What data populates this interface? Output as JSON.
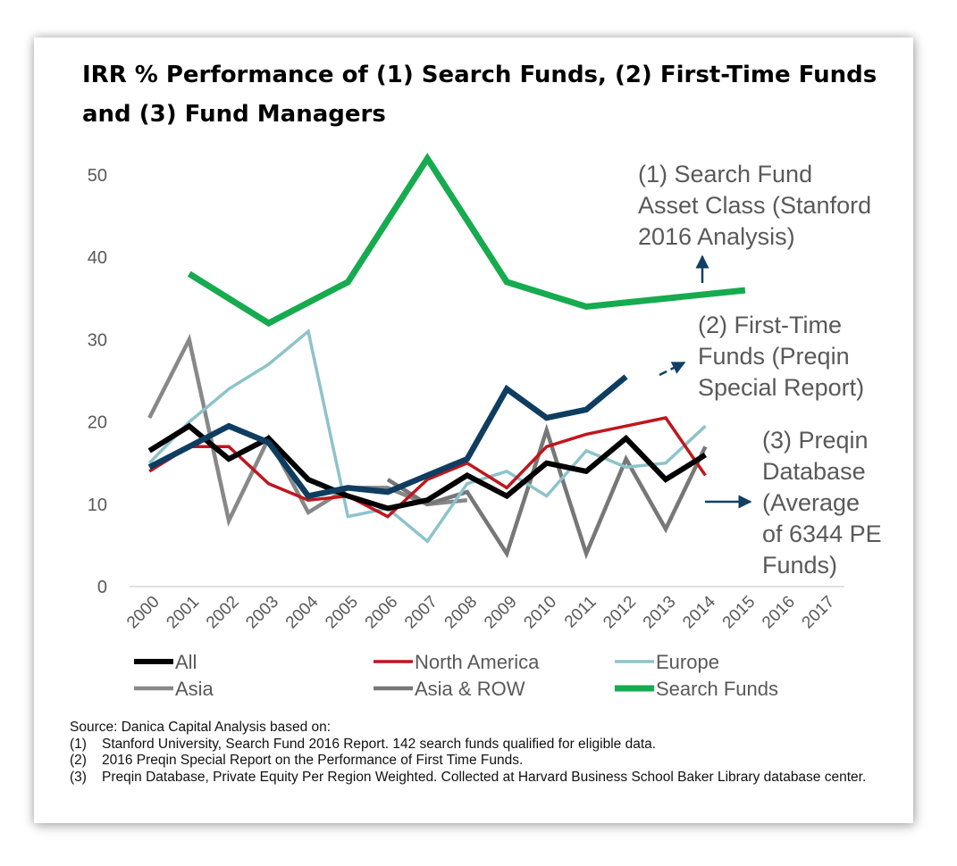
{
  "title_lines": [
    "IRR % Performance of (1) Search Funds, (2) First-Time Funds",
    "and (3) Fund Managers"
  ],
  "chart_data": {
    "type": "line",
    "title": "IRR % Performance of (1) Search Funds, (2) First-Time Funds and (3) Fund Managers",
    "x": [
      "2000",
      "2001",
      "2002",
      "2003",
      "2004",
      "2005",
      "2006",
      "2007",
      "2008",
      "2009",
      "2010",
      "2011",
      "2012",
      "2013",
      "2014",
      "2015",
      "2016",
      "2017"
    ],
    "ylim": [
      0,
      50
    ],
    "yticks": [
      0,
      10,
      20,
      30,
      40,
      50
    ],
    "grid": false,
    "legend_position": "bottom",
    "series": [
      {
        "name": "All",
        "color": "#000000",
        "values": [
          16.5,
          19.5,
          15.5,
          18,
          13,
          11,
          9.5,
          10.5,
          13.5,
          11,
          15,
          14,
          18,
          13,
          16,
          null,
          null,
          null
        ]
      },
      {
        "name": "North America",
        "color": "#c0161c",
        "values": [
          14,
          17,
          17,
          12.5,
          10.5,
          11,
          8.5,
          13,
          15,
          12,
          17,
          18.5,
          19.5,
          20.5,
          13.5,
          null,
          null,
          null
        ]
      },
      {
        "name": "Europe",
        "color": "#8dc3cb",
        "values": [
          15,
          20,
          24,
          27,
          31,
          8.5,
          9.5,
          5.5,
          12.5,
          14,
          11,
          16.5,
          14.5,
          15,
          19.5,
          null,
          null,
          null
        ]
      },
      {
        "name": "Asia",
        "color": "#888888",
        "values": [
          20.5,
          30,
          8,
          18,
          9,
          12,
          12,
          10,
          10.5,
          null,
          null,
          null,
          null,
          null,
          null,
          null,
          null,
          null
        ]
      },
      {
        "name": "Asia & ROW",
        "color": "#777777",
        "values": [
          null,
          null,
          null,
          null,
          null,
          null,
          13,
          10,
          11.5,
          4,
          19,
          4,
          15.5,
          7,
          17,
          null,
          null,
          null
        ]
      },
      {
        "name": "Search Funds",
        "color": "#16ab4f",
        "values": [
          null,
          38,
          null,
          32,
          null,
          37,
          null,
          52,
          null,
          37,
          null,
          34,
          null,
          null,
          null,
          36,
          null,
          null
        ]
      },
      {
        "name": "",
        "color": "#0e3d60",
        "values": [
          14.5,
          17,
          19.5,
          17.5,
          11,
          12,
          11.5,
          13.5,
          15.5,
          24,
          20.5,
          21.5,
          25.5,
          null,
          null,
          null,
          null,
          null
        ]
      }
    ],
    "annotations": [
      {
        "id": "search",
        "lines": [
          "(1) Search Fund",
          "Asset Class (Stanford",
          "2016 Analysis)"
        ]
      },
      {
        "id": "firsttime",
        "lines": [
          "(2) First-Time",
          "Funds (Preqin",
          "Special Report)"
        ]
      },
      {
        "id": "preqin",
        "lines": [
          "(3) Preqin",
          "Database",
          "(Average",
          "of 6344 PE",
          "Funds)"
        ]
      }
    ]
  },
  "source": {
    "heading": "Source: Danica Capital Analysis based on:",
    "notes": [
      {
        "num": "(1)",
        "text": "Stanford University, Search Fund 2016 Report. 142 search funds qualified for eligible data."
      },
      {
        "num": "(2)",
        "text": "2016 Preqin Special Report on the Performance of First Time Funds."
      },
      {
        "num": "(3)",
        "text": "Preqin Database, Private Equity Per Region Weighted. Collected at Harvard Business School Baker Library database center."
      }
    ]
  }
}
